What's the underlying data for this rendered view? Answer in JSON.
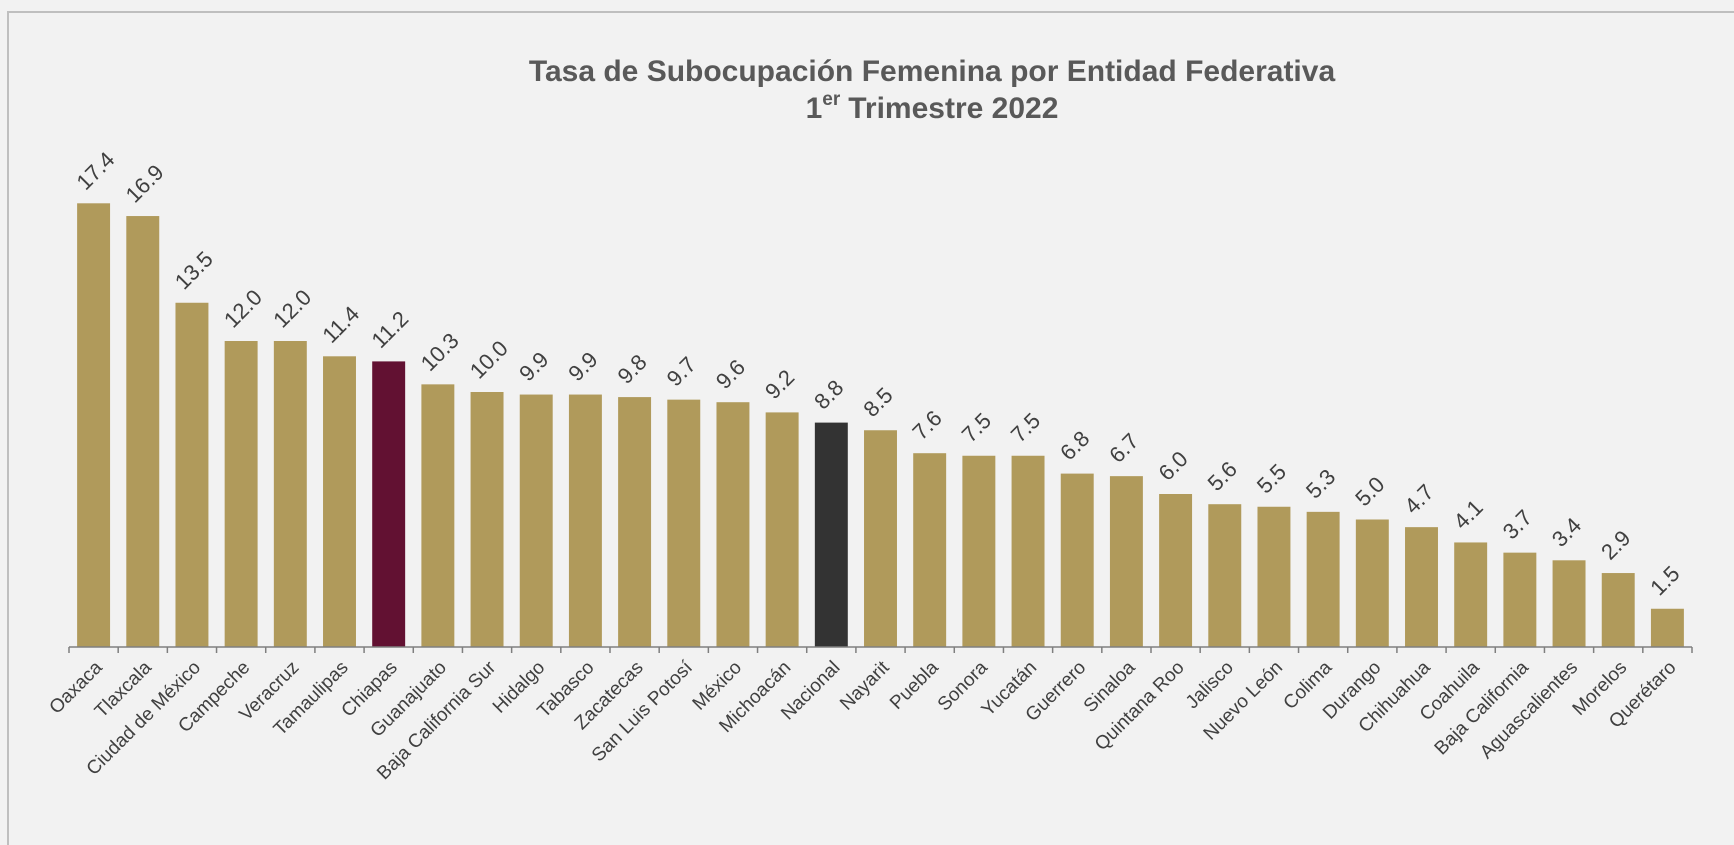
{
  "chart_data": {
    "type": "bar",
    "title": "Tasa de Subocupación Femenina por Entidad Federativa",
    "subtitle": {
      "number": "1",
      "superscript": "er",
      "text": "Trimestre 2022"
    },
    "categories": [
      "Oaxaca",
      "Tlaxcala",
      "Ciudad de México",
      "Campeche",
      "Veracruz",
      "Tamaulipas",
      "Chiapas",
      "Guanajuato",
      "Baja California Sur",
      "Hidalgo",
      "Tabasco",
      "Zacatecas",
      "San Luis Potosí",
      "México",
      "Michoacán",
      "Nacional",
      "Nayarit",
      "Puebla",
      "Sonora",
      "Yucatán",
      "Guerrero",
      "Sinaloa",
      "Quintana Roo",
      "Jalisco",
      "Nuevo León",
      "Colima",
      "Durango",
      "Chihuahua",
      "Coahuila",
      "Baja California",
      "Aguascalientes",
      "Morelos",
      "Querétaro"
    ],
    "values": [
      17.4,
      16.9,
      13.5,
      12.0,
      12.0,
      11.4,
      11.2,
      10.3,
      10.0,
      9.9,
      9.9,
      9.8,
      9.7,
      9.6,
      9.2,
      8.8,
      8.5,
      7.6,
      7.5,
      7.5,
      6.8,
      6.7,
      6.0,
      5.6,
      5.5,
      5.3,
      5.0,
      4.7,
      4.1,
      3.7,
      3.4,
      2.9,
      1.5
    ],
    "value_labels": [
      "17.4",
      "16.9",
      "13.5",
      "12.0",
      "12.0",
      "11.4",
      "11.2",
      "10.3",
      "10.0",
      "9.9",
      "9.9",
      "9.8",
      "9.7",
      "9.6",
      "9.2",
      "8.8",
      "8.5",
      "7.6",
      "7.5",
      "7.5",
      "6.8",
      "6.7",
      "6.0",
      "5.6",
      "5.5",
      "5.3",
      "5.0",
      "4.7",
      "4.1",
      "3.7",
      "3.4",
      "2.9",
      "1.5"
    ],
    "colors": [
      "#b09a5b",
      "#b09a5b",
      "#b09a5b",
      "#b09a5b",
      "#b09a5b",
      "#b09a5b",
      "#621132",
      "#b09a5b",
      "#b09a5b",
      "#b09a5b",
      "#b09a5b",
      "#b09a5b",
      "#b09a5b",
      "#b09a5b",
      "#b09a5b",
      "#333333",
      "#b09a5b",
      "#b09a5b",
      "#b09a5b",
      "#b09a5b",
      "#b09a5b",
      "#b09a5b",
      "#b09a5b",
      "#b09a5b",
      "#b09a5b",
      "#b09a5b",
      "#b09a5b",
      "#b09a5b",
      "#b09a5b",
      "#b09a5b",
      "#b09a5b",
      "#b09a5b",
      "#b09a5b"
    ],
    "ylim": [
      0,
      20
    ]
  }
}
